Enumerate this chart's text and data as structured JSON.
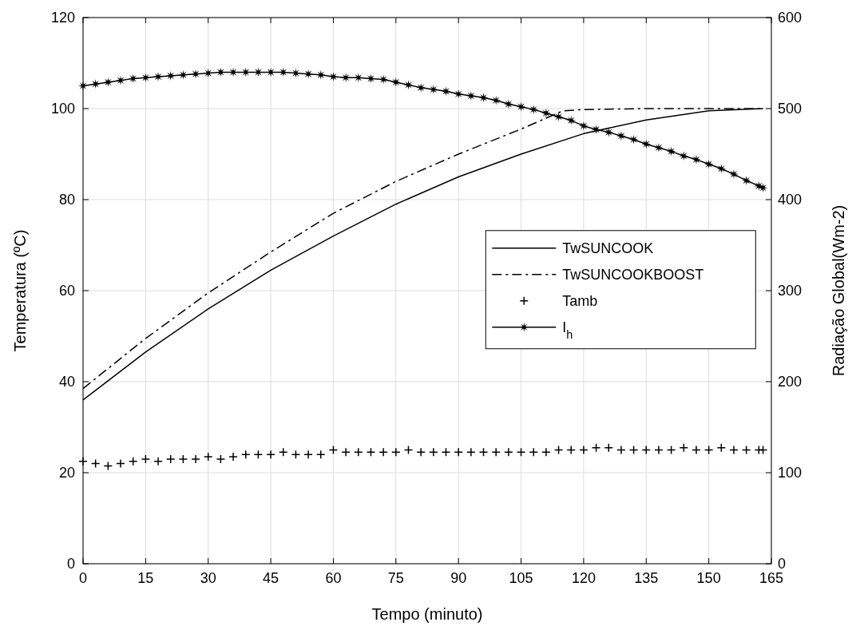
{
  "chart_data": {
    "type": "line",
    "xlabel": "Tempo (minuto)",
    "ylabel": "Temperatura (ºC)",
    "y2label": "Radiação Global(Wm-2)",
    "xlim": [
      0,
      165
    ],
    "xticks": [
      0,
      15,
      30,
      45,
      60,
      75,
      90,
      105,
      120,
      135,
      150,
      165
    ],
    "ylim": [
      0,
      120
    ],
    "yticks": [
      0,
      20,
      40,
      60,
      80,
      100,
      120
    ],
    "y2lim": [
      0,
      600
    ],
    "y2ticks": [
      0,
      100,
      200,
      300,
      400,
      500,
      600
    ],
    "grid": true,
    "legend": "right",
    "series": [
      {
        "name": "TwSUNCOOK",
        "color": "#000000",
        "line_style": "solid",
        "marker": "none",
        "x": [
          0,
          15,
          30,
          45,
          60,
          75,
          90,
          105,
          120,
          135,
          150,
          163
        ],
        "values": [
          36,
          46.5,
          56,
          64.5,
          72,
          79,
          85,
          90,
          94.5,
          97.5,
          99.5,
          100
        ]
      },
      {
        "name": "TwSUNCOOKBOOST",
        "color": "#000000",
        "line_style": "dashdot",
        "marker": "none",
        "x": [
          0,
          15,
          30,
          45,
          60,
          75,
          90,
          105,
          115,
          120,
          135,
          150,
          163
        ],
        "values": [
          38.5,
          49.5,
          59.5,
          68.5,
          77,
          84,
          90,
          95.5,
          99.5,
          99.8,
          100,
          100,
          100
        ]
      },
      {
        "name": "Tamb",
        "type": "scatter",
        "color": "#000000",
        "marker": "cross",
        "x": [
          0,
          3,
          6,
          9,
          12,
          15,
          18,
          21,
          24,
          27,
          30,
          33,
          36,
          39,
          42,
          45,
          48,
          51,
          54,
          57,
          60,
          63,
          66,
          69,
          72,
          75,
          78,
          81,
          84,
          87,
          90,
          93,
          96,
          99,
          102,
          105,
          108,
          111,
          114,
          117,
          120,
          123,
          126,
          129,
          132,
          135,
          138,
          141,
          144,
          147,
          150,
          153,
          156,
          159,
          162,
          163
        ],
        "values": [
          22.5,
          22,
          21.5,
          22,
          22.5,
          23,
          22.5,
          23,
          23,
          23,
          23.5,
          23,
          23.5,
          24,
          24,
          24,
          24.5,
          24,
          24,
          24,
          25,
          24.5,
          24.5,
          24.5,
          24.5,
          24.5,
          25,
          24.5,
          24.5,
          24.5,
          24.5,
          24.5,
          24.5,
          24.5,
          24.5,
          24.5,
          24.5,
          24.5,
          25,
          25,
          25,
          25.5,
          25.5,
          25,
          25,
          25,
          25,
          25,
          25.5,
          25,
          25,
          25.5,
          25,
          25,
          25,
          25
        ]
      },
      {
        "name": "I$_{h}$",
        "type": "line",
        "axis": "y2",
        "color": "#000000",
        "line_style": "solid",
        "marker": "star",
        "x": [
          0,
          3,
          6,
          9,
          12,
          15,
          18,
          21,
          24,
          27,
          30,
          33,
          36,
          39,
          42,
          45,
          48,
          51,
          54,
          57,
          60,
          63,
          66,
          69,
          72,
          75,
          78,
          81,
          84,
          87,
          90,
          93,
          96,
          99,
          102,
          105,
          108,
          111,
          114,
          117,
          120,
          123,
          126,
          129,
          132,
          135,
          138,
          141,
          144,
          147,
          150,
          153,
          156,
          159,
          162,
          163
        ],
        "values": [
          525,
          527,
          529,
          531,
          533,
          534,
          535,
          536,
          537,
          538,
          539,
          540,
          540,
          540,
          540,
          540,
          540,
          539,
          538,
          537,
          535,
          534,
          534,
          533,
          532,
          529,
          526,
          523,
          521,
          519,
          516,
          514,
          512,
          509,
          505,
          502,
          499,
          495,
          491,
          487,
          481,
          477,
          474,
          470,
          466,
          461,
          457,
          453,
          448,
          444,
          439,
          434,
          428,
          421,
          415,
          413
        ]
      }
    ]
  }
}
